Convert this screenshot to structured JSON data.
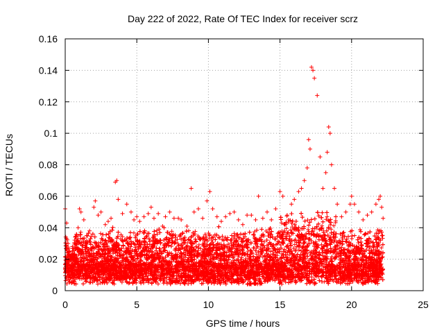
{
  "chart_data": {
    "type": "scatter",
    "title": "Day 222 of 2022, Rate Of TEC Index for receiver scrz",
    "xlabel": "GPS time / hours",
    "ylabel": "ROTI / TECUs",
    "xlim": [
      0,
      25
    ],
    "ylim": [
      0,
      0.16
    ],
    "xticks": [
      0,
      5,
      10,
      15,
      20,
      25
    ],
    "xtick_labels": [
      "0",
      "5",
      "10",
      "15",
      "20",
      "25"
    ],
    "yticks": [
      0,
      0.02,
      0.04,
      0.06,
      0.08,
      0.1,
      0.12,
      0.14,
      0.16
    ],
    "ytick_labels": [
      "0",
      "0.02",
      "0.04",
      "0.06",
      "0.08",
      "0.1",
      "0.12",
      "0.14",
      "0.16"
    ],
    "grid": true,
    "marker": "+",
    "color": "#ff0000",
    "series": [
      {
        "x": [
          0.0,
          0.1,
          0.2,
          0.3,
          0.5,
          0.7,
          0.9,
          1.0,
          1.1,
          1.3,
          1.5,
          1.7,
          2.0,
          2.1,
          2.3,
          2.5,
          2.8,
          3.0,
          3.2,
          3.5,
          3.6,
          3.7,
          4.0,
          4.3,
          4.6,
          4.8,
          5.0,
          5.2,
          5.5,
          5.8,
          6.0,
          6.2,
          6.5,
          6.8,
          7.0,
          7.3,
          7.6,
          7.9,
          8.1,
          8.5,
          8.8,
          9.0,
          9.3,
          9.6,
          9.9,
          10.1,
          10.3,
          10.6,
          10.9,
          11.2,
          11.5,
          11.8,
          12.1,
          12.4,
          12.7,
          13.0,
          13.3,
          13.5,
          13.8,
          14.1,
          14.4,
          14.7,
          15.0,
          15.2,
          15.5,
          15.8,
          16.0,
          16.3,
          16.5,
          16.7,
          16.9,
          17.0,
          17.1,
          17.2,
          17.3,
          17.4,
          17.6,
          17.8,
          18.0,
          18.2,
          18.3,
          18.4,
          18.5,
          18.6,
          18.8,
          19.0,
          19.3,
          19.6,
          19.9,
          20.0,
          20.2,
          20.5,
          20.8,
          21.1,
          21.4,
          21.7,
          21.9,
          22.0,
          22.1,
          22.2
        ],
        "y": [
          0.052,
          0.043,
          0.03,
          0.025,
          0.028,
          0.034,
          0.04,
          0.052,
          0.05,
          0.045,
          0.035,
          0.038,
          0.053,
          0.057,
          0.048,
          0.05,
          0.042,
          0.044,
          0.046,
          0.069,
          0.07,
          0.058,
          0.049,
          0.055,
          0.05,
          0.045,
          0.047,
          0.044,
          0.047,
          0.049,
          0.053,
          0.046,
          0.049,
          0.041,
          0.047,
          0.05,
          0.046,
          0.046,
          0.045,
          0.041,
          0.065,
          0.05,
          0.052,
          0.046,
          0.057,
          0.063,
          0.052,
          0.047,
          0.044,
          0.047,
          0.049,
          0.05,
          0.045,
          0.042,
          0.048,
          0.048,
          0.045,
          0.06,
          0.046,
          0.05,
          0.045,
          0.052,
          0.063,
          0.06,
          0.048,
          0.055,
          0.058,
          0.063,
          0.065,
          0.07,
          0.078,
          0.096,
          0.09,
          0.142,
          0.14,
          0.135,
          0.124,
          0.085,
          0.065,
          0.075,
          0.088,
          0.104,
          0.1,
          0.08,
          0.065,
          0.055,
          0.047,
          0.05,
          0.055,
          0.06,
          0.055,
          0.05,
          0.045,
          0.048,
          0.05,
          0.055,
          0.058,
          0.06,
          0.053,
          0.046
        ]
      }
    ]
  }
}
